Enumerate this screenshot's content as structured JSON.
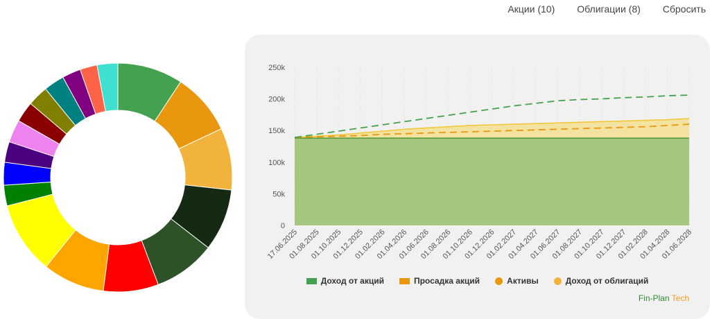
{
  "header": {
    "stocks_label": "Акции (10)",
    "bonds_label": "Облигации (8)",
    "reset_label": "Сбросить"
  },
  "donut": {
    "colors": [
      "#44a14f",
      "#e8970e",
      "#f2b33d",
      "#152a13",
      "#2e5228",
      "#ff0000",
      "#ffa500",
      "#ffff00",
      "#008000",
      "#0000ff",
      "#4b0082",
      "#ee82ee",
      "#8b0000",
      "#808000",
      "#008080",
      "#800080",
      "#ff6347",
      "#40e0d0"
    ],
    "values": [
      9.5,
      9.0,
      9.0,
      9.0,
      9.0,
      8.0,
      9.0,
      10.5,
      3.0,
      3.3,
      3.0,
      3.3,
      3.0,
      3.0,
      3.0,
      2.7,
      2.5,
      3.0
    ]
  },
  "chart_data": {
    "type": "area",
    "y_ticks": [
      "0",
      "50k",
      "100k",
      "150k",
      "200k",
      "250k"
    ],
    "ylim": [
      0,
      250000
    ],
    "categories": [
      "17.06.2025",
      "01.08.2025",
      "01.10.2025",
      "01.12.2025",
      "01.02.2026",
      "01.04.2026",
      "01.06.2026",
      "01.08.2026",
      "01.10.2026",
      "01.12.2026",
      "01.02.2027",
      "01.04.2027",
      "01.06.2027",
      "01.08.2027",
      "01.10.2027",
      "01.12.2027",
      "01.02.2028",
      "01.04.2028",
      "01.06.2028"
    ],
    "series": [
      {
        "name": "Доход от акций",
        "type": "area",
        "values": [
          138000,
          138000,
          138000,
          138000,
          138000,
          138000,
          138000,
          138000,
          138000,
          138000,
          138000,
          138000,
          138000,
          138000,
          138000,
          138000,
          138000,
          138000,
          138000
        ]
      },
      {
        "name": "Доход от облигаций",
        "type": "area-line",
        "values": [
          139000,
          141000,
          143000,
          146000,
          149000,
          152000,
          154000,
          156000,
          158000,
          159000,
          160000,
          161000,
          162000,
          163000,
          164000,
          165000,
          166000,
          167000,
          169000
        ]
      },
      {
        "name": "Просадка акций",
        "type": "dashed",
        "values": [
          139000,
          140000,
          141000,
          142000,
          144000,
          145000,
          146000,
          147000,
          148000,
          149000,
          150000,
          151000,
          152000,
          153000,
          154000,
          155000,
          156000,
          158000,
          160000
        ]
      },
      {
        "name": "Активы",
        "type": "dashed",
        "values": [
          139000,
          144000,
          149000,
          154000,
          159000,
          164000,
          169000,
          174000,
          179000,
          184000,
          189000,
          193000,
          197000,
          199000,
          200000,
          202000,
          203000,
          205000,
          206000
        ]
      }
    ],
    "legend": [
      {
        "label": "Доход от акций",
        "color": "#44a14f",
        "marker": "square"
      },
      {
        "label": "Просадка акций",
        "color": "#e8970e",
        "marker": "square"
      },
      {
        "label": "Активы",
        "color": "#e8970e",
        "marker": "circle"
      },
      {
        "label": "Доход от облигаций",
        "color": "#f2b33d",
        "marker": "circle"
      }
    ],
    "colors": {
      "stocks_fill": "#a5c67e",
      "stocks_line": "#5a9a3a",
      "bonds_fill": "#f4e3a0",
      "bonds_line": "#f0c838",
      "drawdown": "#e8970e",
      "assets": "#44a14f"
    }
  },
  "brand": {
    "part1": "Fin-Plan",
    "part2": "Tech",
    "color1": "#2e8b2e",
    "color2": "#f0a020"
  }
}
